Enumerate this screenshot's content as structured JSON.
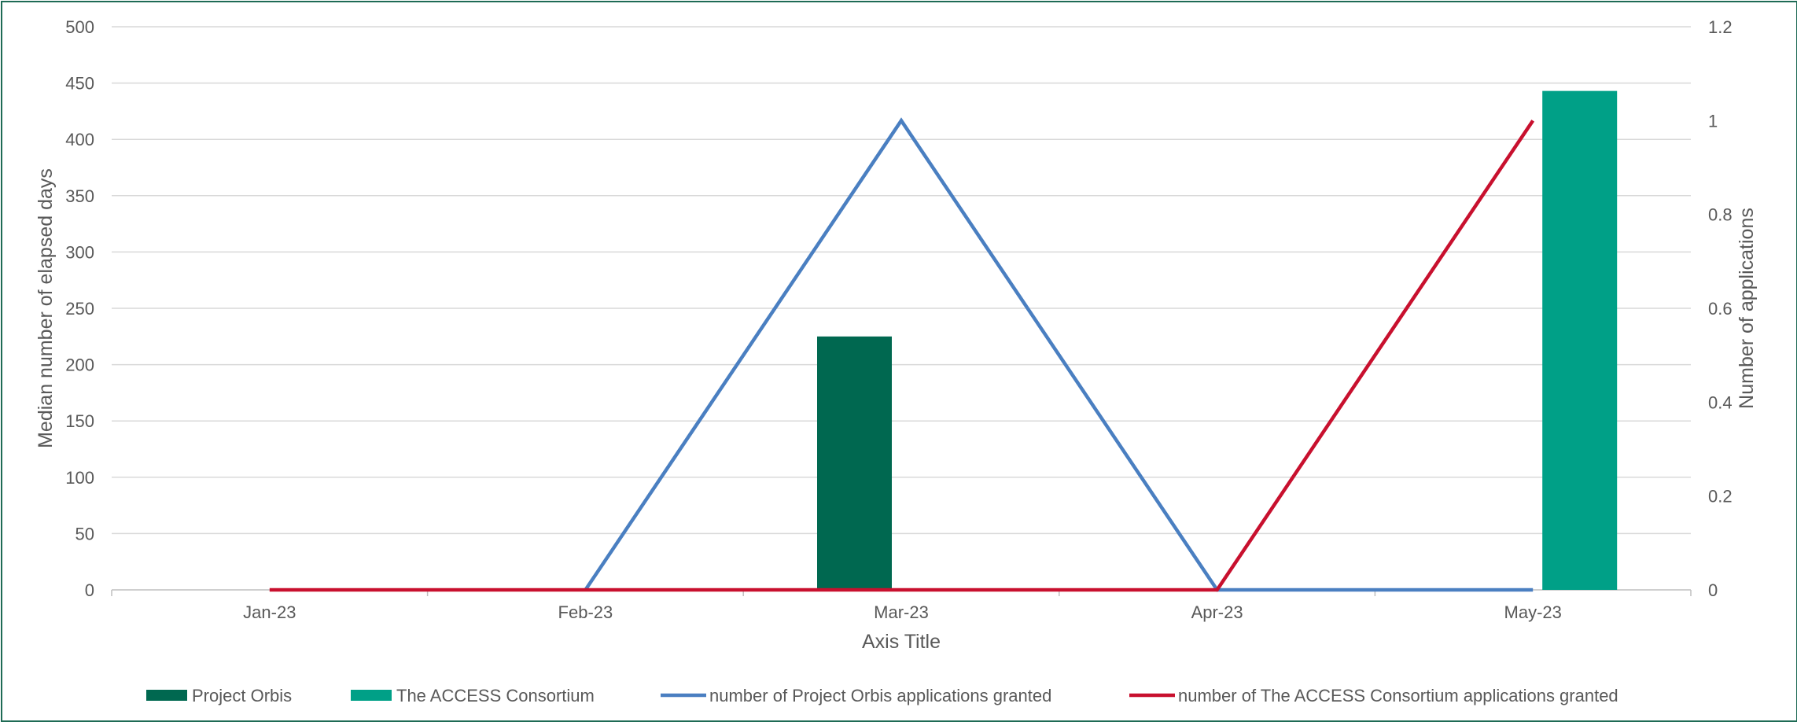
{
  "chart_data": {
    "type": "bar",
    "categories": [
      "Jan-23",
      "Feb-23",
      "Mar-23",
      "Apr-23",
      "May-23"
    ],
    "bar_series": [
      {
        "name": "Project Orbis",
        "values": [
          0,
          0,
          225,
          0,
          0
        ],
        "color": "#006850"
      },
      {
        "name": "The ACCESS Consortium",
        "values": [
          0,
          0,
          0,
          0,
          443
        ],
        "color": "#00a087"
      }
    ],
    "line_series": [
      {
        "name": "number of Project Orbis applications granted",
        "values": [
          null,
          0,
          1,
          0,
          0
        ],
        "color": "#4a7fc1",
        "axis": "right"
      },
      {
        "name": "number of The ACCESS Consortium applications granted",
        "values": [
          0,
          0,
          0,
          0,
          1
        ],
        "color": "#c8102e",
        "axis": "right"
      }
    ],
    "xlabel": "Axis Title",
    "ylabel": "Median number of elapsed days",
    "y2label": "Number of applications",
    "ylim": [
      0,
      500
    ],
    "y2lim": [
      0,
      1.2
    ],
    "yticks": [
      "0",
      "50",
      "100",
      "150",
      "200",
      "250",
      "300",
      "350",
      "400",
      "450",
      "500"
    ],
    "y2ticks": [
      "0",
      "0.2",
      "0.4",
      "0.6",
      "0.8",
      "1",
      "1.2"
    ],
    "grid": true,
    "legend_position": "bottom"
  }
}
